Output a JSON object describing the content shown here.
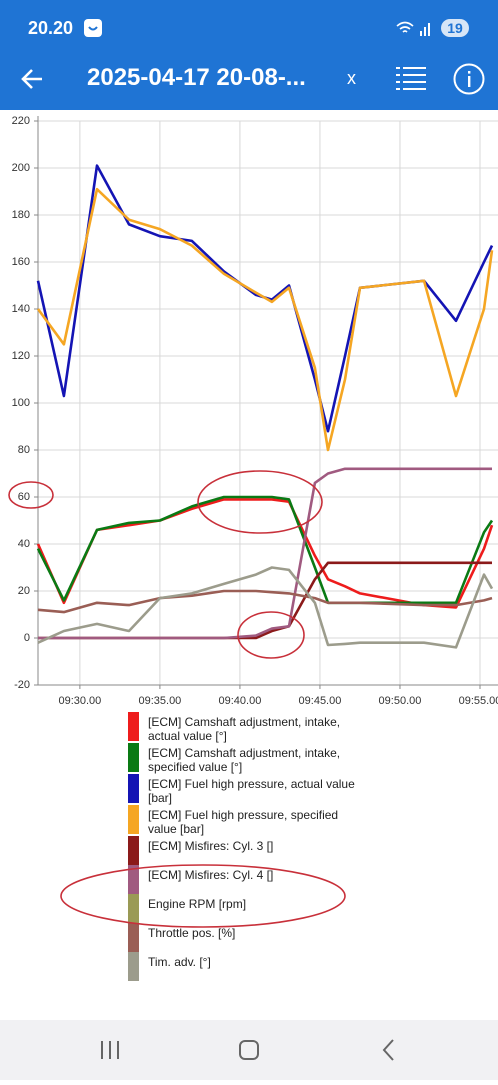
{
  "status_bar": {
    "time": "20.20",
    "battery": "19"
  },
  "app_bar": {
    "title": "2025-04-17 20-08-...",
    "close": "x"
  },
  "chart_data": {
    "type": "line",
    "x": [
      "09:27.23",
      "09:29.00",
      "09:31.04",
      "09:33.04",
      "09:35.00",
      "09:37.00",
      "09:39.00",
      "09:41.00",
      "09:42.00",
      "09:43.04",
      "09:44.41",
      "09:45.30",
      "09:46.34",
      "09:47.30",
      "09:51.30",
      "09:53.30",
      "09:55.15",
      "09:55.45"
    ],
    "xlim": [
      "09:27.23",
      "09:55.45"
    ],
    "xticks": [
      "09:30.00",
      "09:35.00",
      "09:40.00",
      "09:45.00",
      "09:50.00",
      "09:55.00"
    ],
    "ylim": [
      -20,
      220
    ],
    "yticks": [
      -20,
      0,
      20,
      40,
      60,
      80,
      100,
      120,
      140,
      160,
      180,
      200,
      220
    ],
    "grid": true,
    "series": [
      {
        "name": "[ECM] Camshaft adjustment, intake, actual value [°]",
        "color": "#ee1c1c",
        "values": [
          40,
          15,
          46,
          48,
          50,
          55,
          59,
          59,
          59,
          58,
          35,
          25,
          22,
          19,
          14,
          13,
          38,
          48
        ]
      },
      {
        "name": "[ECM] Camshaft adjustment, intake, specified value [°]",
        "color": "#0a7a14",
        "values": [
          38,
          16,
          46,
          49,
          50,
          56,
          60,
          60,
          60,
          59,
          30,
          15,
          15,
          15,
          15,
          15,
          45,
          50
        ]
      },
      {
        "name": "[ECM] Fuel high pressure, actual value [bar]",
        "color": "#1414b4",
        "values": [
          152,
          103,
          201,
          176,
          171,
          169,
          156,
          146,
          144,
          150,
          110,
          88,
          120,
          149,
          152,
          135,
          160,
          167
        ]
      },
      {
        "name": "[ECM] Fuel high pressure, specified value [bar]",
        "color": "#f5a623",
        "values": [
          140,
          125,
          191,
          178,
          174,
          167,
          155,
          147,
          143,
          149,
          115,
          80,
          110,
          149,
          152,
          103,
          140,
          165
        ]
      },
      {
        "name": "[ECM] Misfires: Cyl. 3 []",
        "color": "#8b1a1a",
        "values": [
          0,
          0,
          0,
          0,
          0,
          0,
          0,
          0,
          3,
          5,
          25,
          32,
          32,
          32,
          32,
          32,
          32,
          32
        ]
      },
      {
        "name": "[ECM] Misfires: Cyl. 4 []",
        "color": "#a05a80",
        "values": [
          0,
          0,
          0,
          0,
          0,
          0,
          0,
          1,
          4,
          5,
          66,
          70,
          72,
          72,
          72,
          72,
          72,
          72
        ]
      },
      {
        "name": "Engine RPM [rpm]",
        "color": "#9a9a55",
        "values": [
          null,
          null,
          null,
          null,
          null,
          null,
          null,
          null,
          null,
          null,
          null,
          null,
          null,
          null,
          null,
          null,
          null,
          null
        ]
      },
      {
        "name": "Throttle pos. [%]",
        "color": "#9a5e55",
        "values": [
          12,
          11,
          15,
          14,
          17,
          18,
          20,
          20,
          19.5,
          19,
          17,
          15,
          15,
          15,
          14,
          14,
          16,
          17
        ]
      },
      {
        "name": "Tim. adv. [°]",
        "color": "#9c9c8c",
        "values": [
          -2,
          3,
          6,
          3,
          17,
          19,
          23,
          27,
          30,
          29,
          15,
          -3,
          -2.5,
          -2,
          -2,
          -4,
          27,
          21
        ]
      }
    ]
  }
}
